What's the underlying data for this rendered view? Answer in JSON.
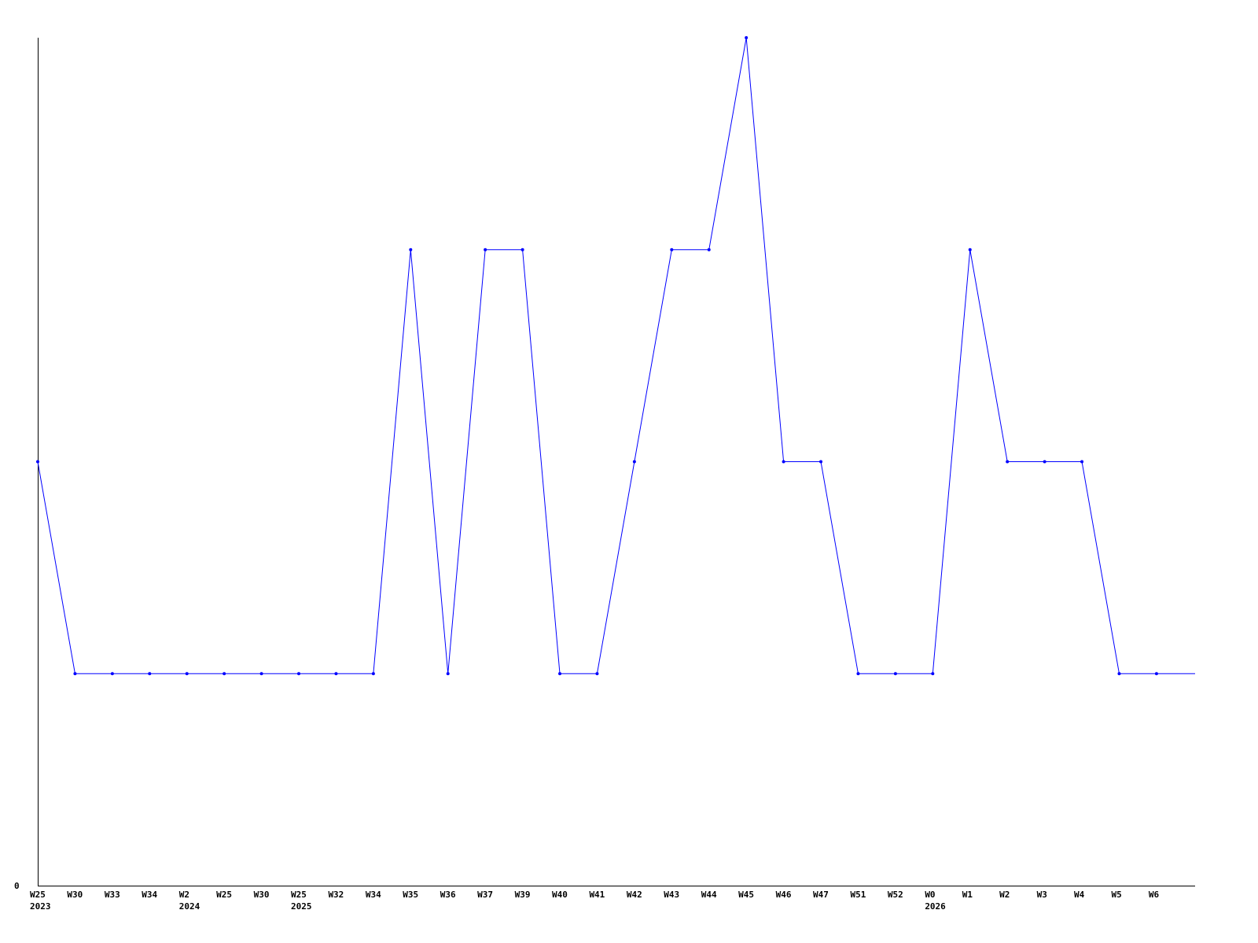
{
  "chart_data": {
    "type": "line",
    "title": "",
    "xlabel": "",
    "ylabel": "",
    "ylim": [
      0,
      4
    ],
    "y_tick_labels": [
      "0"
    ],
    "grid": false,
    "line_color": "#0000ff",
    "x_labels": [
      {
        "week": "W25",
        "year": "2023"
      },
      {
        "week": "W30",
        "year": ""
      },
      {
        "week": "W33",
        "year": ""
      },
      {
        "week": "W34",
        "year": ""
      },
      {
        "week": "W2",
        "year": "2024"
      },
      {
        "week": "W25",
        "year": ""
      },
      {
        "week": "W30",
        "year": ""
      },
      {
        "week": "W25",
        "year": "2025"
      },
      {
        "week": "W32",
        "year": ""
      },
      {
        "week": "W34",
        "year": ""
      },
      {
        "week": "W35",
        "year": ""
      },
      {
        "week": "W36",
        "year": ""
      },
      {
        "week": "W37",
        "year": ""
      },
      {
        "week": "W39",
        "year": ""
      },
      {
        "week": "W40",
        "year": ""
      },
      {
        "week": "W41",
        "year": ""
      },
      {
        "week": "W42",
        "year": ""
      },
      {
        "week": "W43",
        "year": ""
      },
      {
        "week": "W44",
        "year": ""
      },
      {
        "week": "W45",
        "year": ""
      },
      {
        "week": "W46",
        "year": ""
      },
      {
        "week": "W47",
        "year": ""
      },
      {
        "week": "W51",
        "year": ""
      },
      {
        "week": "W52",
        "year": ""
      },
      {
        "week": "W0",
        "year": "2026"
      },
      {
        "week": "W1",
        "year": ""
      },
      {
        "week": "W2",
        "year": ""
      },
      {
        "week": "W3",
        "year": ""
      },
      {
        "week": "W4",
        "year": ""
      },
      {
        "week": "W5",
        "year": ""
      },
      {
        "week": "W6",
        "year": ""
      }
    ],
    "series": [
      {
        "values": [
          2,
          1,
          1,
          1,
          1,
          1,
          1,
          1,
          1,
          1,
          3,
          1,
          3,
          3,
          1,
          1,
          2,
          3,
          3,
          4,
          2,
          2,
          1,
          1,
          1,
          3,
          2,
          2,
          2,
          1,
          1
        ]
      }
    ]
  }
}
